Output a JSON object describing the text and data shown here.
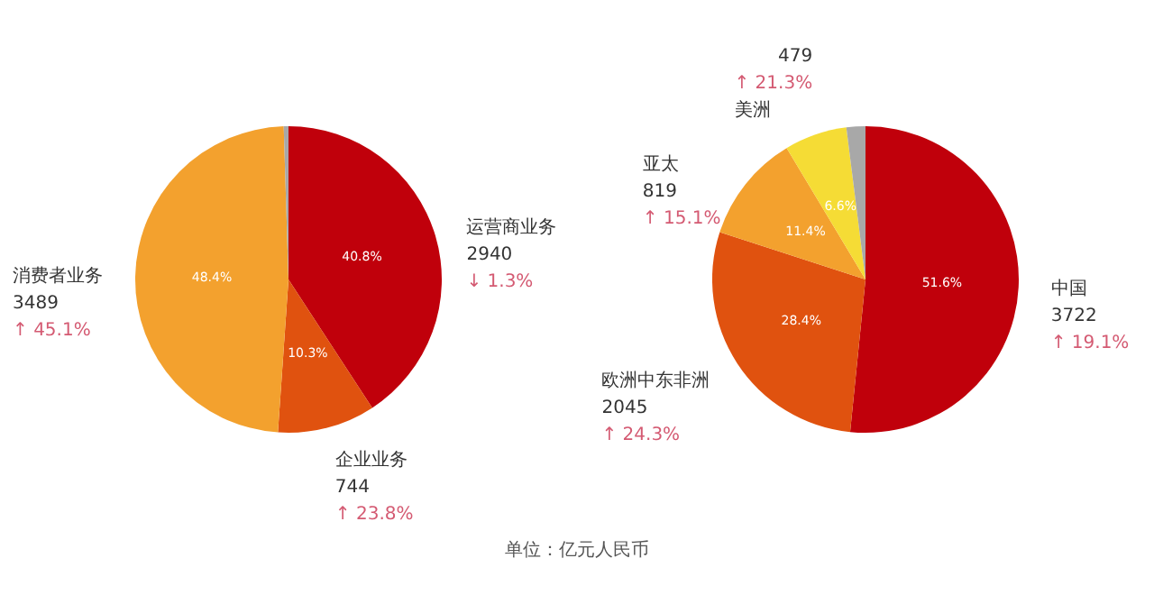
{
  "chart_data": [
    {
      "type": "pie",
      "categories": [
        "运营商业务",
        "企业业务",
        "消费者业务",
        null
      ],
      "values": [
        40.8,
        10.3,
        48.4,
        0.5
      ],
      "colors": [
        "#c0000b",
        "#e0520f",
        "#f3a12e",
        "#a8a8a8"
      ],
      "value_labels": [
        "40.8%",
        "10.3%",
        "48.4%",
        null
      ],
      "annotations": [
        {
          "text": "2940",
          "x": "运营商业务"
        },
        {
          "text": "↓ 1.3%",
          "x": "运营商业务"
        },
        {
          "text": "744",
          "x": "企业业务"
        },
        {
          "text": "↑ 23.8%",
          "x": "企业业务"
        },
        {
          "text": "3489",
          "x": "消费者业务"
        },
        {
          "text": "↑ 45.1%",
          "x": "消费者业务"
        }
      ]
    },
    {
      "type": "pie",
      "categories": [
        "中国",
        "欧洲中东非洲",
        "亚太",
        "美洲",
        null
      ],
      "values": [
        51.6,
        28.4,
        11.4,
        6.6,
        2.0
      ],
      "colors": [
        "#c0000b",
        "#e0520f",
        "#f3a12e",
        "#f5dc35",
        "#a8a8a8"
      ],
      "value_labels": [
        "51.6%",
        "28.4%",
        "11.4%",
        "6.6%",
        null
      ],
      "annotations": [
        {
          "text": "3722",
          "x": "中国"
        },
        {
          "text": "↑ 19.1%",
          "x": "中国"
        },
        {
          "text": "2045",
          "x": "欧洲中东非洲"
        },
        {
          "text": "↑ 24.3%",
          "x": "欧洲中东非洲"
        },
        {
          "text": "819",
          "x": "亚太"
        },
        {
          "text": "↑ 15.1%",
          "x": "亚太"
        },
        {
          "text": "479",
          "x": "美洲"
        },
        {
          "text": "↑ 21.3%",
          "x": "美洲"
        },
        "单位：亿元人民币"
      ]
    }
  ]
}
